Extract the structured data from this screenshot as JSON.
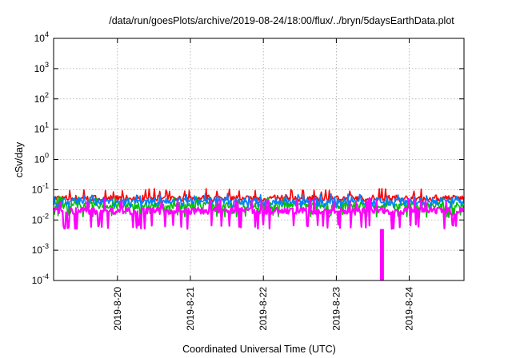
{
  "chart_data": {
    "type": "line",
    "title": "/data/run/goesPlots/archive/2019-08-24/18:00/flux/../bryn/5daysEarthData.plot",
    "xlabel": "Coordinated Universal Time (UTC)",
    "ylabel": "cSv/day",
    "yscale": "log",
    "ylim": [
      0.0001,
      10000
    ],
    "xlim": [
      "2019-08-19T03:00",
      "2019-08-24T18:00"
    ],
    "grid": true,
    "legend": "none",
    "y_ticks": [
      {
        "value": 0.0001,
        "base": "10",
        "exp": "-4"
      },
      {
        "value": 0.001,
        "base": "10",
        "exp": "-3"
      },
      {
        "value": 0.01,
        "base": "10",
        "exp": "-2"
      },
      {
        "value": 0.1,
        "base": "10",
        "exp": "-1"
      },
      {
        "value": 1,
        "base": "10",
        "exp": "0"
      },
      {
        "value": 10,
        "base": "10",
        "exp": "1"
      },
      {
        "value": 100,
        "base": "10",
        "exp": "2"
      },
      {
        "value": 1000,
        "base": "10",
        "exp": "3"
      },
      {
        "value": 10000,
        "base": "10",
        "exp": "4"
      }
    ],
    "x_ticks": [
      {
        "value": "2019-08-20T00:00",
        "label": "2019-8-20"
      },
      {
        "value": "2019-08-21T00:00",
        "label": "2019-8-21"
      },
      {
        "value": "2019-08-22T00:00",
        "label": "2019-8-22"
      },
      {
        "value": "2019-08-23T00:00",
        "label": "2019-8-23"
      },
      {
        "value": "2019-08-24T00:00",
        "label": "2019-8-24"
      }
    ],
    "series": [
      {
        "color": "#ff0000",
        "level": 0.052,
        "low": 0.04,
        "high": 0.11
      },
      {
        "color": "#00c000",
        "level": 0.03,
        "low": 0.012,
        "high": 0.06
      },
      {
        "color": "#0080ff",
        "level": 0.042,
        "low": 0.025,
        "high": 0.075
      },
      {
        "color": "#ff00ff",
        "level": 0.02,
        "low": 0.005,
        "high": 0.05
      }
    ],
    "annotations": [
      {
        "series": "#ff00ff",
        "date": "2019-08-23T15:00",
        "value": 0.0001,
        "note": "dropout to axis minimum"
      }
    ]
  }
}
